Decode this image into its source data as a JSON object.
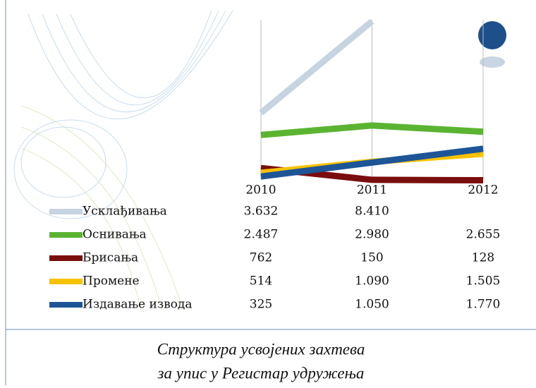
{
  "chart_data": {
    "type": "line",
    "categories": [
      "2010",
      "2011",
      "2012"
    ],
    "series": [
      {
        "name": "Усклађивања",
        "color": "#c6d4e2",
        "values": [
          3632,
          8410,
          null
        ],
        "value_labels": [
          "3.632",
          "8.410",
          null
        ]
      },
      {
        "name": "Оснивања",
        "color": "#5bb431",
        "values": [
          2487,
          2980,
          2655
        ],
        "value_labels": [
          "2.487",
          "2.980",
          "2.655"
        ]
      },
      {
        "name": "Брисања",
        "color": "#7a0d0d",
        "values": [
          762,
          150,
          128
        ],
        "value_labels": [
          "762",
          "150",
          "128"
        ]
      },
      {
        "name": "Промене",
        "color": "#f7c200",
        "values": [
          514,
          1090,
          1505
        ],
        "value_labels": [
          "514",
          "1.090",
          "1.505"
        ]
      },
      {
        "name": "Издавање извода",
        "color": "#1d5597",
        "values": [
          325,
          1050,
          1770
        ],
        "value_labels": [
          "325",
          "1.050",
          "1.770"
        ]
      }
    ],
    "ylim": [
      0,
      9000
    ],
    "caption": [
      "Структура усвојених захтева",
      "за упис у Регистар удружења"
    ]
  }
}
